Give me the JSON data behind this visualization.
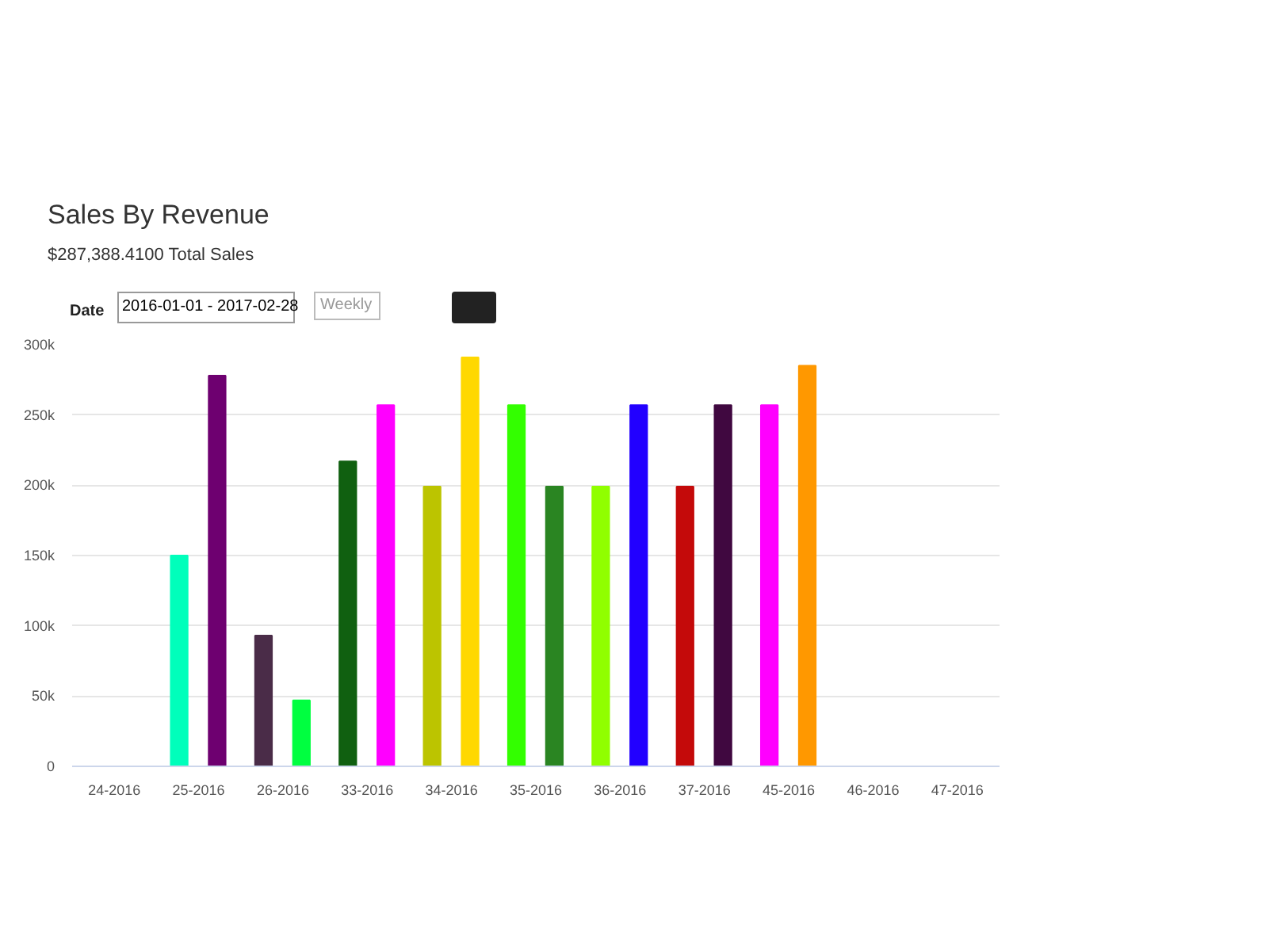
{
  "chart_data": {
    "type": "bar",
    "title": "Sales By Revenue",
    "subtitle": "$287,388.4100 Total Sales",
    "annotations": [
      "Date",
      "2016-01-01 - 2017-02-28",
      "Weekly"
    ],
    "categories": [
      "24-2016",
      "25-2016",
      "26-2016",
      "33-2016",
      "34-2016",
      "35-2016",
      "36-2016",
      "37-2016",
      "45-2016",
      "46-2016",
      "47-2016"
    ],
    "series": [
      {
        "colors": [
          "#00ffbb",
          "#00ffbb",
          "#4a2c48",
          "#106010",
          "#bcc400",
          "#33ff00",
          "#90ff00",
          "#c40a0a",
          "#ff00ff",
          "#ff00ff",
          "#ff00ff"
        ],
        "values": [
          null,
          150000,
          93000,
          217000,
          199000,
          257000,
          199000,
          199000,
          257000,
          null,
          null
        ]
      },
      {
        "colors": [
          "#6e0070",
          "#6e0070",
          "#00ff40",
          "#ff00ff",
          "#ffd800",
          "#2a8522",
          "#2200ff",
          "#400840",
          "#ff9800",
          "#ff9800",
          "#ff9800"
        ],
        "values": [
          null,
          278000,
          47000,
          257000,
          291000,
          199000,
          257000,
          257000,
          285000,
          null,
          null
        ]
      }
    ],
    "ylim": [
      0,
      300000
    ],
    "yticks": [
      0,
      {
        "value": 50000,
        "label": "50k"
      },
      {
        "value": 100000,
        "label": "100k"
      },
      {
        "value": 150000,
        "label": "150k"
      },
      {
        "value": 200000,
        "label": "200k"
      },
      {
        "value": 250000,
        "label": "250k"
      },
      {
        "value": 300000,
        "label": "300k"
      }
    ],
    "grid": "y"
  }
}
